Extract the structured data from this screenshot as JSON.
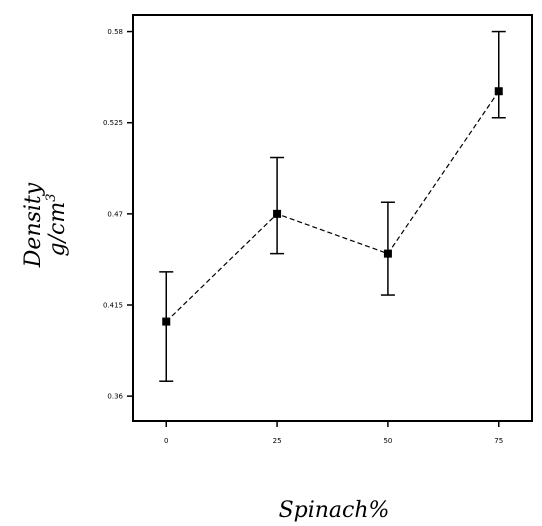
{
  "chart_data": {
    "type": "line",
    "title": "",
    "xlabel": "Spinach%",
    "ylabel_line1": "Density",
    "ylabel_line2_base": "g/cm",
    "ylabel_line2_sup": "3",
    "x_ticks": [
      "0",
      "25",
      "50",
      "75"
    ],
    "y_ticks": [
      "0.36",
      "0.415",
      "0.47",
      "0.525",
      "0.58"
    ],
    "xlim": [
      -7.5,
      82.5
    ],
    "ylim": [
      0.345,
      0.59
    ],
    "grid": false,
    "legend": "none",
    "marker": "square",
    "line_style": "dashed",
    "color": "#000000",
    "series": [
      {
        "x": [
          0,
          25,
          50,
          75
        ],
        "y": [
          0.405,
          0.47,
          0.446,
          0.544
        ],
        "err_low": [
          0.369,
          0.446,
          0.421,
          0.528
        ],
        "err_high": [
          0.435,
          0.504,
          0.477,
          0.58
        ]
      }
    ]
  }
}
